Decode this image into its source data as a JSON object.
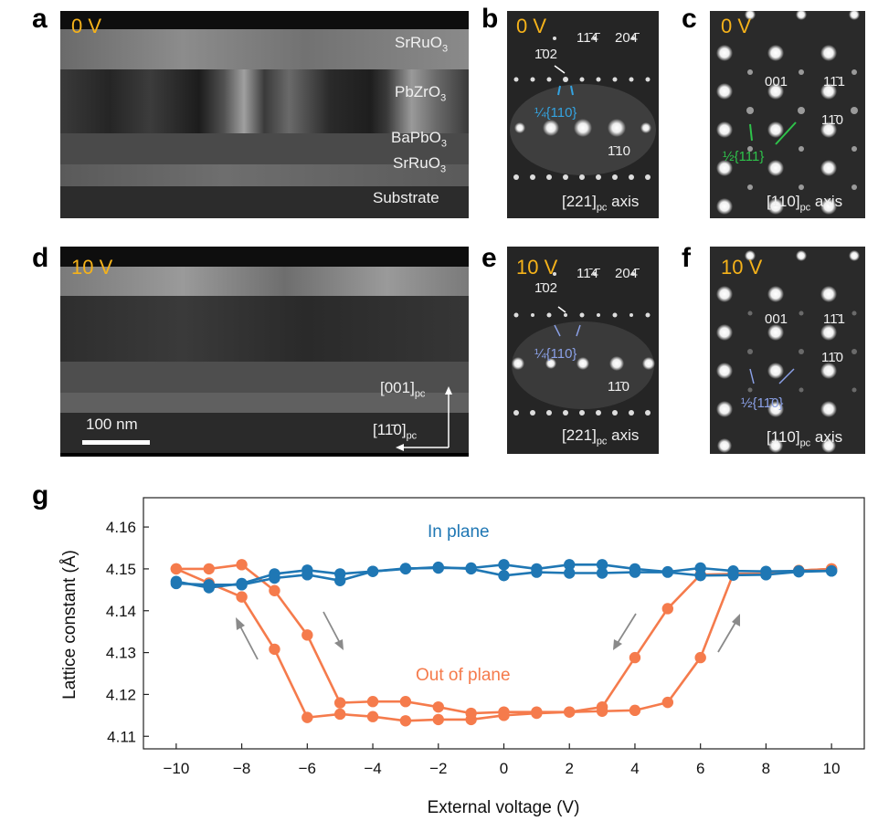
{
  "panels": {
    "a": {
      "letter": "a",
      "voltage": "0 V",
      "layers": [
        "SrRuO",
        "PbZrO",
        "BaPbO",
        "SrRuO",
        "Substrate"
      ],
      "layer_sub": "3"
    },
    "b": {
      "letter": "b",
      "voltage": "0 V",
      "idx1": "1̄02",
      "idx2": "11̄4̄",
      "idx3": "204̄",
      "idx4": "1̄10",
      "super": "¼{110}",
      "axis_main": "[221]",
      "axis_sub": "pc",
      "axis_word": " axis"
    },
    "c": {
      "letter": "c",
      "voltage": "0 V",
      "idx1": "001",
      "idx2": "11̄1",
      "idx3": "11̄0",
      "super": "½{111}",
      "axis_main": "[110]",
      "axis_sub": "pc",
      "axis_word": " axis"
    },
    "d": {
      "letter": "d",
      "voltage": "10 V",
      "scale": "100 nm",
      "dir1_main": "[001]",
      "dir1_sub": "pc",
      "dir2_main": "[11̄0]",
      "dir2_sub": "pc"
    },
    "e": {
      "letter": "e",
      "voltage": "10 V",
      "idx1": "1̄02",
      "idx2": "11̄4̄",
      "idx3": "204̄",
      "idx4": "11̄0",
      "super": "¼{110}",
      "axis_main": "[221]",
      "axis_sub": "pc",
      "axis_word": " axis"
    },
    "f": {
      "letter": "f",
      "voltage": "10 V",
      "idx1": "001",
      "idx2": "11̄1",
      "idx3": "11̄0",
      "super": "½{11̄0}",
      "axis_main": "[110]",
      "axis_sub": "pc",
      "axis_word": " axis"
    },
    "g": {
      "letter": "g"
    }
  },
  "colors": {
    "voltage": "#f5b21a",
    "in_plane": "#1f77b4",
    "out_of_plane": "#f57b4c",
    "super_blue": "#34a3e0",
    "super_green": "#2ec24a",
    "super_lavender": "#8aa0e6"
  },
  "chart_data": {
    "type": "line",
    "xlabel": "External voltage (V)",
    "ylabel": "Lattice constant (Å)",
    "xlim": [
      -11,
      11
    ],
    "ylim": [
      4.107,
      4.167
    ],
    "xticks": [
      -10,
      -8,
      -6,
      -4,
      -2,
      0,
      2,
      4,
      6,
      8,
      10
    ],
    "xtick_labels": [
      "−10",
      "−8",
      "−6",
      "−4",
      "−2",
      "0",
      "2",
      "4",
      "6",
      "8",
      "10"
    ],
    "yticks": [
      4.11,
      4.12,
      4.13,
      4.14,
      4.15,
      4.16
    ],
    "ytick_labels": [
      "4.11",
      "4.12",
      "4.13",
      "4.14",
      "4.15",
      "4.16"
    ],
    "grid": false,
    "annotations": [
      "In plane",
      "Out of plane"
    ],
    "series": [
      {
        "name": "In plane",
        "sweeps": [
          {
            "x": [
              -10,
              -9,
              -8,
              -7,
              -6,
              -5,
              -4,
              -3,
              -2,
              -1,
              0,
              1,
              2,
              3,
              4,
              5,
              6,
              7,
              8,
              9,
              10
            ],
            "y": [
              4.147,
              4.1455,
              4.1465,
              4.1488,
              4.1497,
              4.1488,
              4.1494,
              4.1501,
              4.1502,
              4.1502,
              4.151,
              4.15,
              4.151,
              4.151,
              4.15,
              4.1493,
              4.1502,
              4.1495,
              4.1494,
              4.1495,
              4.1495
            ]
          },
          {
            "x": [
              10,
              9,
              8,
              7,
              6,
              5,
              4,
              3,
              2,
              1,
              0,
              -1,
              -2,
              -3,
              -4,
              -5,
              -6,
              -7,
              -8,
              -9,
              -10
            ],
            "y": [
              4.1495,
              4.1493,
              4.1486,
              4.1485,
              4.1484,
              4.1492,
              4.1492,
              4.149,
              4.149,
              4.1492,
              4.1484,
              4.15,
              4.1504,
              4.15,
              4.1494,
              4.1472,
              4.1486,
              4.1478,
              4.1462,
              4.1462,
              4.1465
            ]
          }
        ]
      },
      {
        "name": "Out of plane",
        "sweeps": [
          {
            "x": [
              -10,
              -9,
              -8,
              -7,
              -6,
              -5,
              -4,
              -3,
              -2,
              -1,
              0,
              1,
              2,
              3,
              4,
              5,
              6,
              7,
              8,
              9,
              10
            ],
            "y": [
              4.15,
              4.1466,
              4.1433,
              4.1308,
              4.1145,
              4.1153,
              4.1147,
              4.1137,
              4.114,
              4.114,
              4.115,
              4.1155,
              4.1158,
              4.116,
              4.1162,
              4.1181,
              4.1288,
              4.1488,
              4.1488,
              4.1496,
              4.15
            ]
          },
          {
            "x": [
              10,
              9,
              8,
              7,
              6,
              5,
              4,
              3,
              2,
              1,
              0,
              -1,
              -2,
              -3,
              -4,
              -5,
              -6,
              -7,
              -8,
              -9,
              -10
            ],
            "y": [
              4.15,
              4.1496,
              4.1488,
              4.1488,
              4.1486,
              4.1405,
              4.1288,
              4.117,
              4.1158,
              4.1158,
              4.1158,
              4.1155,
              4.117,
              4.1183,
              4.1183,
              4.118,
              4.1342,
              4.1448,
              4.151,
              4.15,
              4.15
            ]
          }
        ]
      }
    ]
  }
}
